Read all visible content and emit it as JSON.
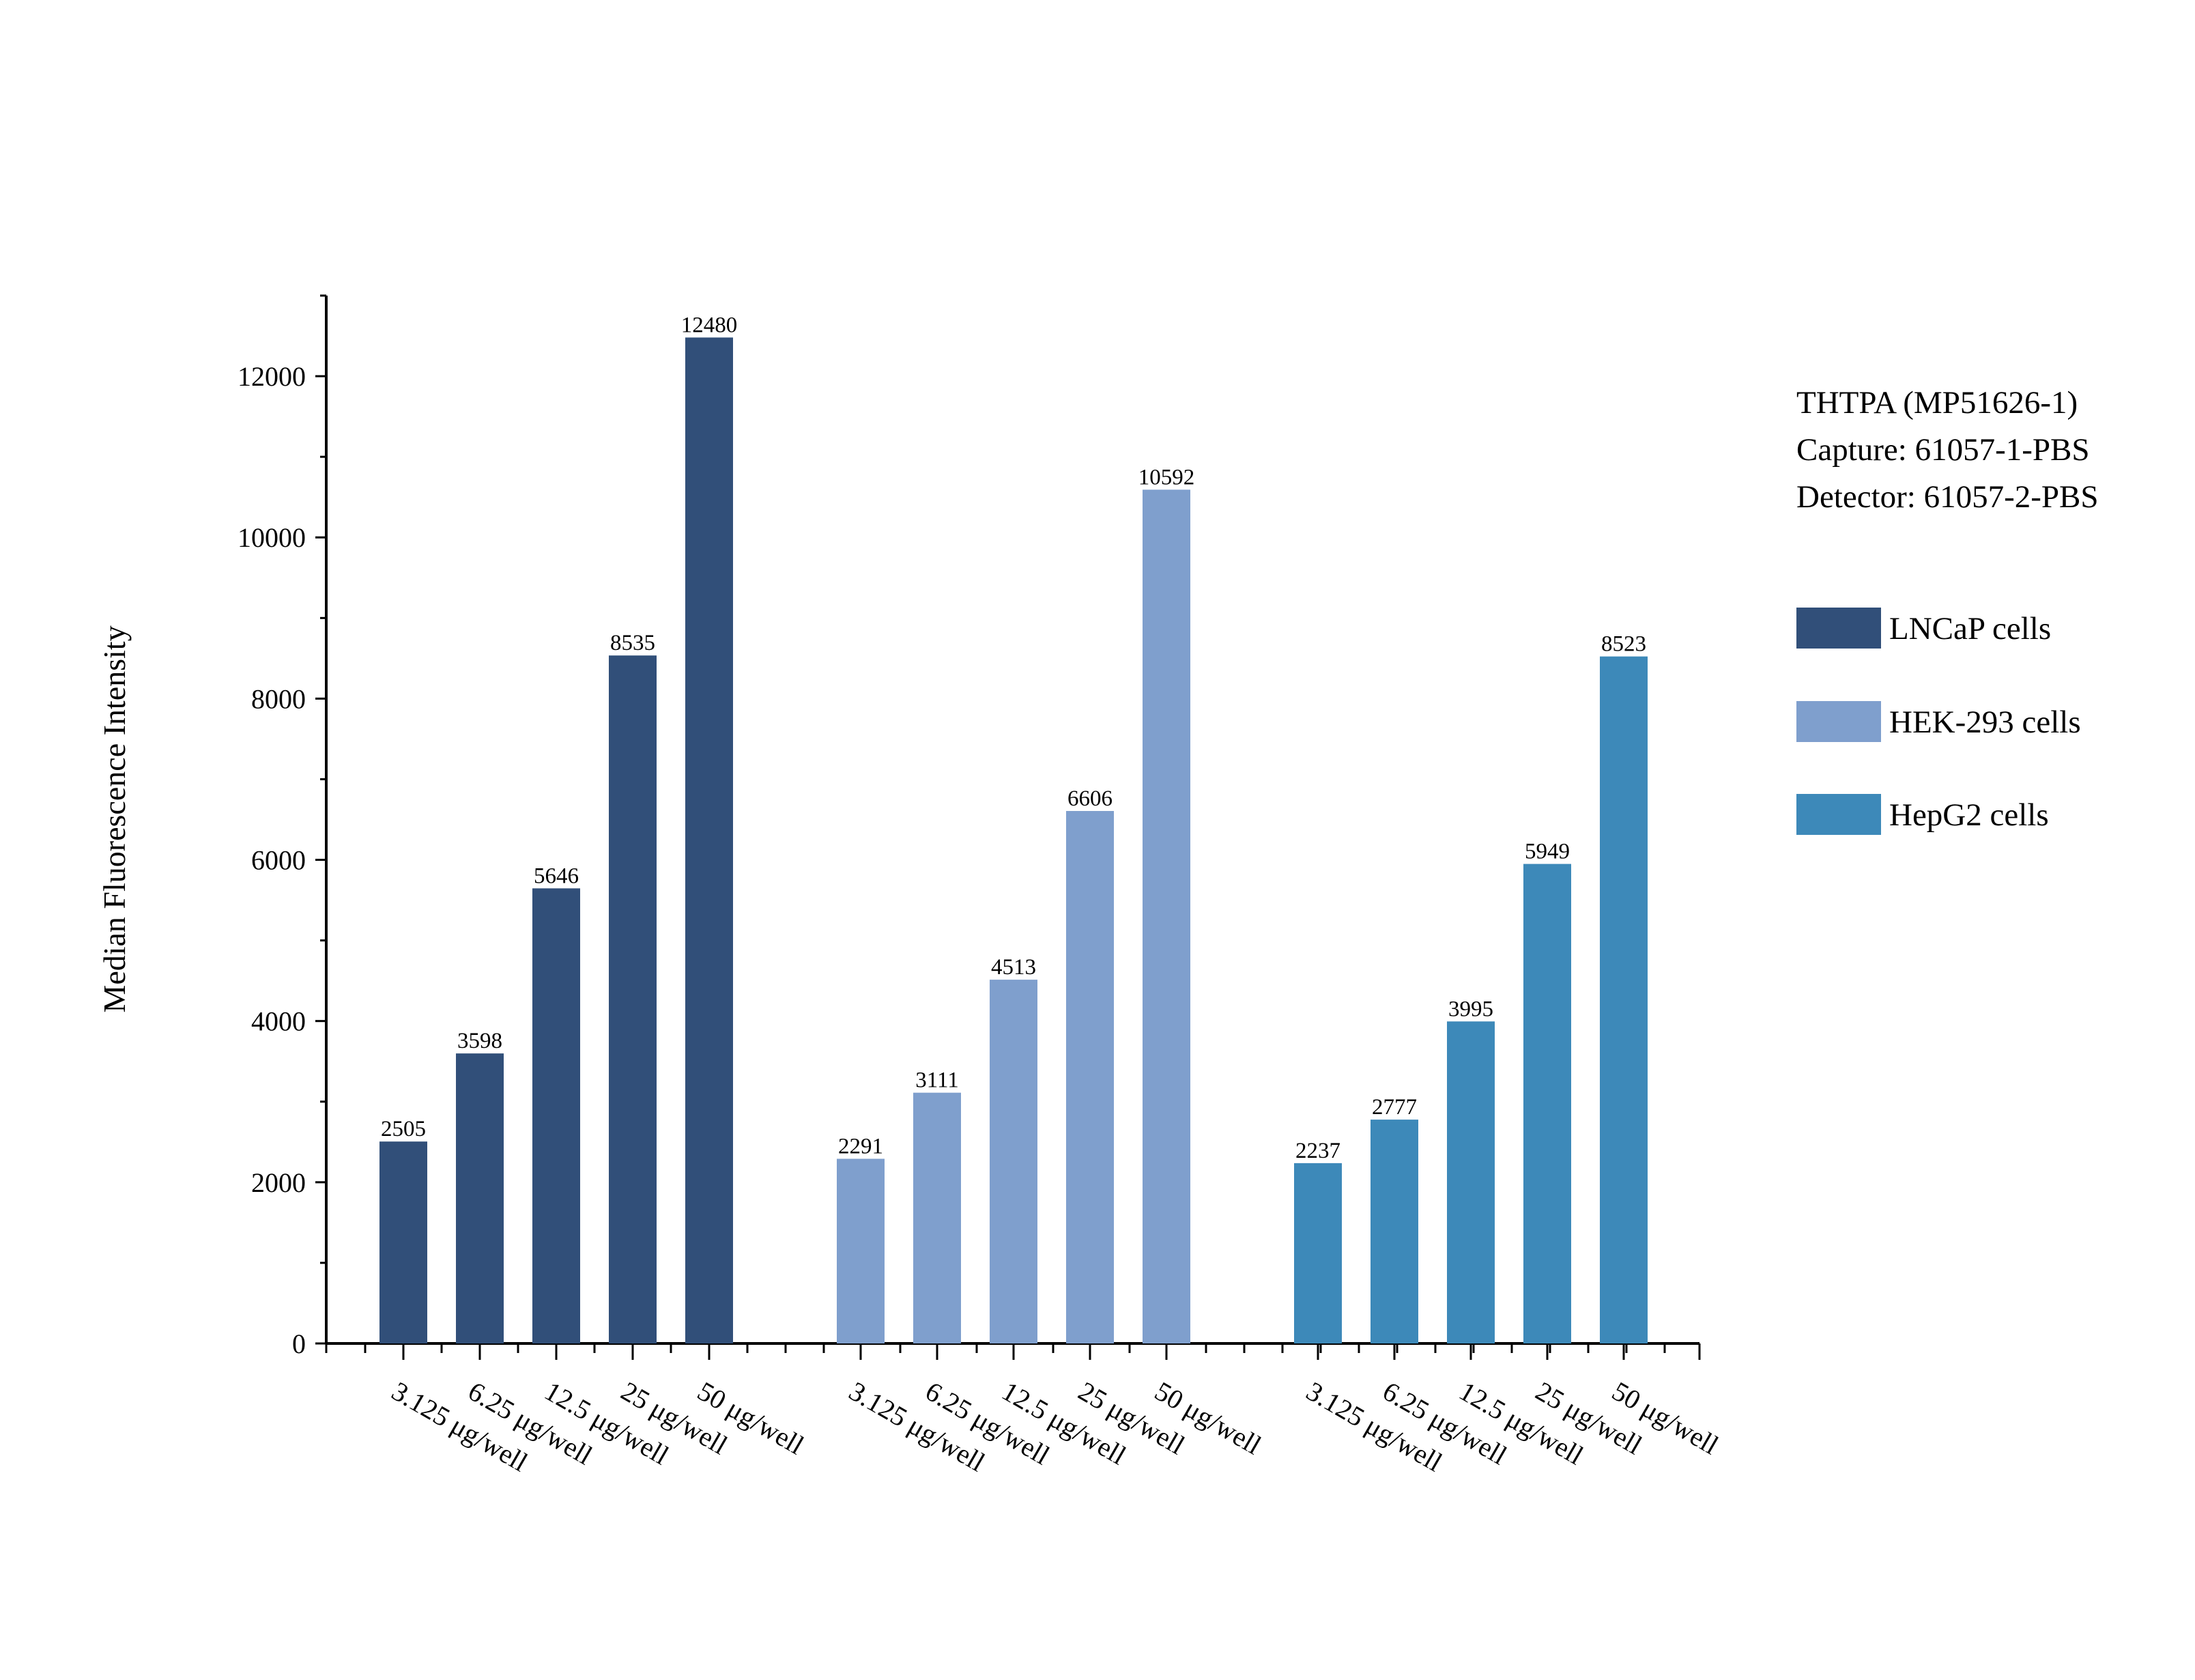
{
  "chart_data": {
    "type": "bar",
    "title": "",
    "xlabel": "",
    "ylabel": "Median Fluorescence Intensity",
    "ylim": [
      0,
      13000
    ],
    "yticks": [
      0,
      2000,
      4000,
      6000,
      8000,
      10000,
      12000
    ],
    "grid": false,
    "legend_position": "right",
    "info_lines": [
      "THTPA (MP51626-1)",
      "Capture: 61057-1-PBS",
      "Detector: 61057-2-PBS"
    ],
    "categories": [
      "3.125 μg/well",
      "6.25 μg/well",
      "12.5 μg/well",
      "25 μg/well",
      "50 μg/well"
    ],
    "series": [
      {
        "name": "LNCaP cells",
        "color": "#314F79",
        "values": [
          2505,
          3598,
          5646,
          8535,
          12480
        ]
      },
      {
        "name": "HEK-293 cells",
        "color": "#7F9FCD",
        "values": [
          2291,
          3111,
          4513,
          6606,
          10592
        ]
      },
      {
        "name": "HepG2 cells",
        "color": "#3D89B9",
        "values": [
          2237,
          2777,
          3995,
          5949,
          8523
        ]
      }
    ]
  }
}
